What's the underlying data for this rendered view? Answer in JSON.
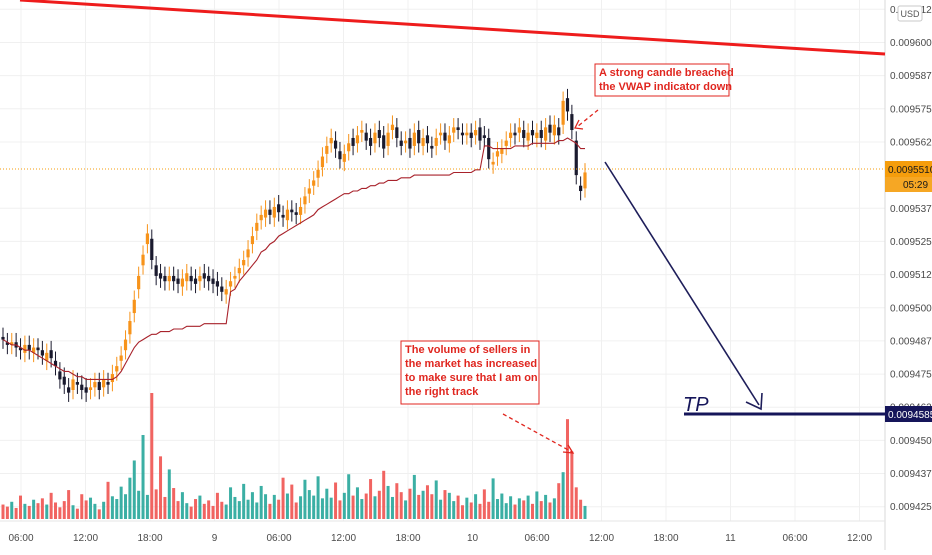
{
  "chart_data": {
    "type": "candlestick",
    "currency_badge": "USD",
    "y_axis": {
      "ticks": [
        "0.0096125",
        "0.0096000",
        "0.0095875",
        "0.0095750",
        "0.0095625",
        "0.0095375",
        "0.0095250",
        "0.0095125",
        "0.0095000",
        "0.0094875",
        "0.0094750",
        "0.0094625",
        "0.0094500",
        "0.0094375",
        "0.0094250"
      ],
      "ylim": [
        0.0094215,
        0.0096145
      ]
    },
    "x_axis": {
      "ticks": [
        "06:00",
        "12:00",
        "18:00",
        "9",
        "06:00",
        "12:00",
        "18:00",
        "10",
        "06:00",
        "12:00",
        "18:00",
        "11",
        "06:00",
        "12:00"
      ]
    },
    "price_labels": {
      "current_price": "0.0095510",
      "countdown": "05:29",
      "tp_price": "0.0094585"
    },
    "annotations": {
      "tp_label": "TP",
      "note_top": [
        "A strong candle breached",
        "the VWAP indicator down"
      ],
      "note_volume": [
        "The volume of sellers in",
        "the market has increased",
        "to make sure that I am on",
        "the right track"
      ]
    },
    "series": [
      {
        "name": "price",
        "kind": "candles",
        "close": [
          0.009488,
          0.009486,
          0.009487,
          0.009485,
          0.009484,
          0.009486,
          0.009484,
          0.009485,
          0.009484,
          0.009482,
          0.009483,
          0.009481,
          0.009478,
          0.009473,
          0.009471,
          0.009468,
          0.009473,
          0.009471,
          0.009469,
          0.009468,
          0.00947,
          0.009472,
          0.009469,
          0.009473,
          0.009471,
          0.009475,
          0.009478,
          0.009482,
          0.009488,
          0.009495,
          0.009503,
          0.009512,
          0.00952,
          0.009528,
          0.009518,
          0.009512,
          0.009511,
          0.00951,
          0.009512,
          0.00951,
          0.009509,
          0.009511,
          0.009513,
          0.00951,
          0.009509,
          0.009512,
          0.009511,
          0.00951,
          0.009509,
          0.009508,
          0.009506,
          0.009507,
          0.00951,
          0.009512,
          0.009515,
          0.009518,
          0.009522,
          0.009527,
          0.009532,
          0.009535,
          0.009537,
          0.009535,
          0.009538,
          0.009536,
          0.009534,
          0.009537,
          0.009536,
          0.009535,
          0.009538,
          0.009542,
          0.009545,
          0.009548,
          0.009552,
          0.009557,
          0.009561,
          0.009564,
          0.00956,
          0.009556,
          0.009558,
          0.009562,
          0.009561,
          0.009565,
          0.009567,
          0.009563,
          0.009561,
          0.009566,
          0.009564,
          0.00956,
          0.009566,
          0.009569,
          0.009564,
          0.009561,
          0.009563,
          0.00956,
          0.009566,
          0.009562,
          0.009564,
          0.009562,
          0.00956,
          0.009564,
          0.009566,
          0.009563,
          0.009565,
          0.009568,
          0.009567,
          0.009565,
          0.009566,
          0.009564,
          0.009567,
          0.009563,
          0.009564,
          0.009556,
          0.009555,
          0.009559,
          0.00956,
          0.009563,
          0.009566,
          0.009565,
          0.009568,
          0.009564,
          0.009566,
          0.009565,
          0.009566,
          0.009564,
          0.009568,
          0.009566,
          0.009569,
          0.009565,
          0.009578,
          0.009574,
          0.009567,
          0.00955,
          0.009544,
          0.009551
        ],
        "open": [
          0.009489,
          0.009487,
          0.009486,
          0.009487,
          0.009485,
          0.009483,
          0.009486,
          0.009483,
          0.009485,
          0.009484,
          0.00948,
          0.009484,
          0.00948,
          0.009476,
          0.009474,
          0.00947,
          0.009469,
          0.009472,
          0.009471,
          0.00947,
          0.009469,
          0.00947,
          0.009472,
          0.00947,
          0.009472,
          0.009472,
          0.009476,
          0.00948,
          0.009484,
          0.00949,
          0.009498,
          0.009507,
          0.009516,
          0.009524,
          0.009526,
          0.009516,
          0.009513,
          0.009512,
          0.00951,
          0.009512,
          0.009511,
          0.009508,
          0.00951,
          0.009512,
          0.009511,
          0.00951,
          0.009513,
          0.009512,
          0.009511,
          0.00951,
          0.009508,
          0.009505,
          0.009508,
          0.009511,
          0.009513,
          0.009516,
          0.009519,
          0.009524,
          0.009529,
          0.009533,
          0.009534,
          0.009537,
          0.009534,
          0.009539,
          0.009535,
          0.009533,
          0.009537,
          0.009536,
          0.009535,
          0.009539,
          0.009543,
          0.009546,
          0.009549,
          0.009553,
          0.009558,
          0.009562,
          0.009563,
          0.009559,
          0.009555,
          0.009559,
          0.009564,
          0.009562,
          0.009566,
          0.009566,
          0.009564,
          0.009562,
          0.009567,
          0.009565,
          0.009561,
          0.009567,
          0.009568,
          0.009563,
          0.009562,
          0.009564,
          0.009561,
          0.009567,
          0.009561,
          0.009565,
          0.009561,
          0.009561,
          0.009565,
          0.009566,
          0.009562,
          0.009566,
          0.009568,
          0.009566,
          0.009565,
          0.009566,
          0.009565,
          0.009568,
          0.009565,
          0.009564,
          0.009554,
          0.009557,
          0.009558,
          0.009561,
          0.009564,
          0.009566,
          0.009566,
          0.009567,
          0.009563,
          0.009567,
          0.009564,
          0.009567,
          0.009563,
          0.009569,
          0.009565,
          0.009568,
          0.009569,
          0.009579,
          0.009573,
          0.009563,
          0.009546,
          0.009545
        ]
      },
      {
        "name": "VWAP",
        "kind": "line",
        "values": [
          0.009488,
          0.009487,
          0.009486,
          0.009486,
          0.009485,
          0.009484,
          0.009484,
          0.009483,
          0.009482,
          0.009481,
          0.00948,
          0.009479,
          0.009478,
          0.009477,
          0.009476,
          0.009476,
          0.009475,
          0.009474,
          0.009474,
          0.009473,
          0.009473,
          0.009473,
          0.009473,
          0.009473,
          0.009473,
          0.009473,
          0.009474,
          0.009476,
          0.009479,
          0.009482,
          0.009485,
          0.009487,
          0.009488,
          0.009489,
          0.00949,
          0.00949,
          0.009491,
          0.009491,
          0.009491,
          0.009492,
          0.009492,
          0.009492,
          0.009493,
          0.009493,
          0.009493,
          0.009493,
          0.009494,
          0.009494,
          0.009494,
          0.009494,
          0.009494,
          0.009494,
          0.009506,
          0.009507,
          0.00951,
          0.009512,
          0.009514,
          0.009516,
          0.009518,
          0.009521,
          0.009522,
          0.009524,
          0.009525,
          0.009527,
          0.009528,
          0.009529,
          0.00953,
          0.009531,
          0.009532,
          0.009533,
          0.009534,
          0.009535,
          0.009537,
          0.009538,
          0.009539,
          0.00954,
          0.009541,
          0.009542,
          0.009543,
          0.009543,
          0.009544,
          0.009544,
          0.009545,
          0.009545,
          0.009546,
          0.009546,
          0.009547,
          0.009547,
          0.009548,
          0.009548,
          0.009548,
          0.009549,
          0.009549,
          0.009549,
          0.00955,
          0.00955,
          0.00955,
          0.00955,
          0.00955,
          0.00955,
          0.00955,
          0.00955,
          0.00955,
          0.009551,
          0.009551,
          0.009551,
          0.009551,
          0.009551,
          0.009552,
          0.009552,
          0.009561,
          0.009561,
          0.00956,
          0.00956,
          0.00956,
          0.00956,
          0.00956,
          0.009561,
          0.009561,
          0.009561,
          0.009561,
          0.009562,
          0.009562,
          0.009562,
          0.009562,
          0.009562,
          0.009562,
          0.009563,
          0.009563,
          0.009564,
          0.009563,
          0.009562,
          0.00956,
          0.00956
        ]
      },
      {
        "name": "volume",
        "kind": "bars",
        "values": [
          2.1,
          1.8,
          2.5,
          1.6,
          3.4,
          2.2,
          1.9,
          2.8,
          2.3,
          3.0,
          2.1,
          3.8,
          2.4,
          1.7,
          2.6,
          4.2,
          2.0,
          1.5,
          3.6,
          2.7,
          3.1,
          2.2,
          1.4,
          2.5,
          5.4,
          3.3,
          2.9,
          4.7,
          3.6,
          6.0,
          8.5,
          4.1,
          12.2,
          3.5,
          18.3,
          4.3,
          9.1,
          3.2,
          7.2,
          4.5,
          2.6,
          3.9,
          2.3,
          1.8,
          2.9,
          3.4,
          2.2,
          2.7,
          1.9,
          3.8,
          2.5,
          2.1,
          4.6,
          3.2,
          2.6,
          5.1,
          2.8,
          3.9,
          2.4,
          4.8,
          3.6,
          2.2,
          3.5,
          2.8,
          6.0,
          3.7,
          5.0,
          2.4,
          3.3,
          5.7,
          4.2,
          3.4,
          6.2,
          3.0,
          4.4,
          3.1,
          5.3,
          2.7,
          3.8,
          6.5,
          3.4,
          4.6,
          2.9,
          3.7,
          5.8,
          3.3,
          4.1,
          7.0,
          4.8,
          3.2,
          5.2,
          3.9,
          2.7,
          4.4,
          6.4,
          3.5,
          4.1,
          4.9,
          3.6,
          5.6,
          2.8,
          4.2,
          3.8,
          2.6,
          3.4,
          2.0,
          3.1,
          2.4,
          3.6,
          2.2,
          4.3,
          2.5,
          5.9,
          2.9,
          3.7,
          2.3,
          3.3,
          2.1,
          3.0,
          2.7,
          3.4,
          2.2,
          4.0,
          2.6,
          3.5,
          2.4,
          3.0,
          5.2,
          6.8,
          14.5,
          9.8,
          4.6,
          2.8,
          1.9
        ]
      }
    ]
  },
  "colors": {
    "up": "#f7931a",
    "down": "#1a1a2e",
    "vwap": "#a8222b",
    "vol_up": "#26a69a",
    "vol_down": "#ef5350",
    "trendline": "#ee1c1c",
    "arrow": "#1e1e5a",
    "accent": "#f59d0c",
    "note": "#e0261f"
  }
}
